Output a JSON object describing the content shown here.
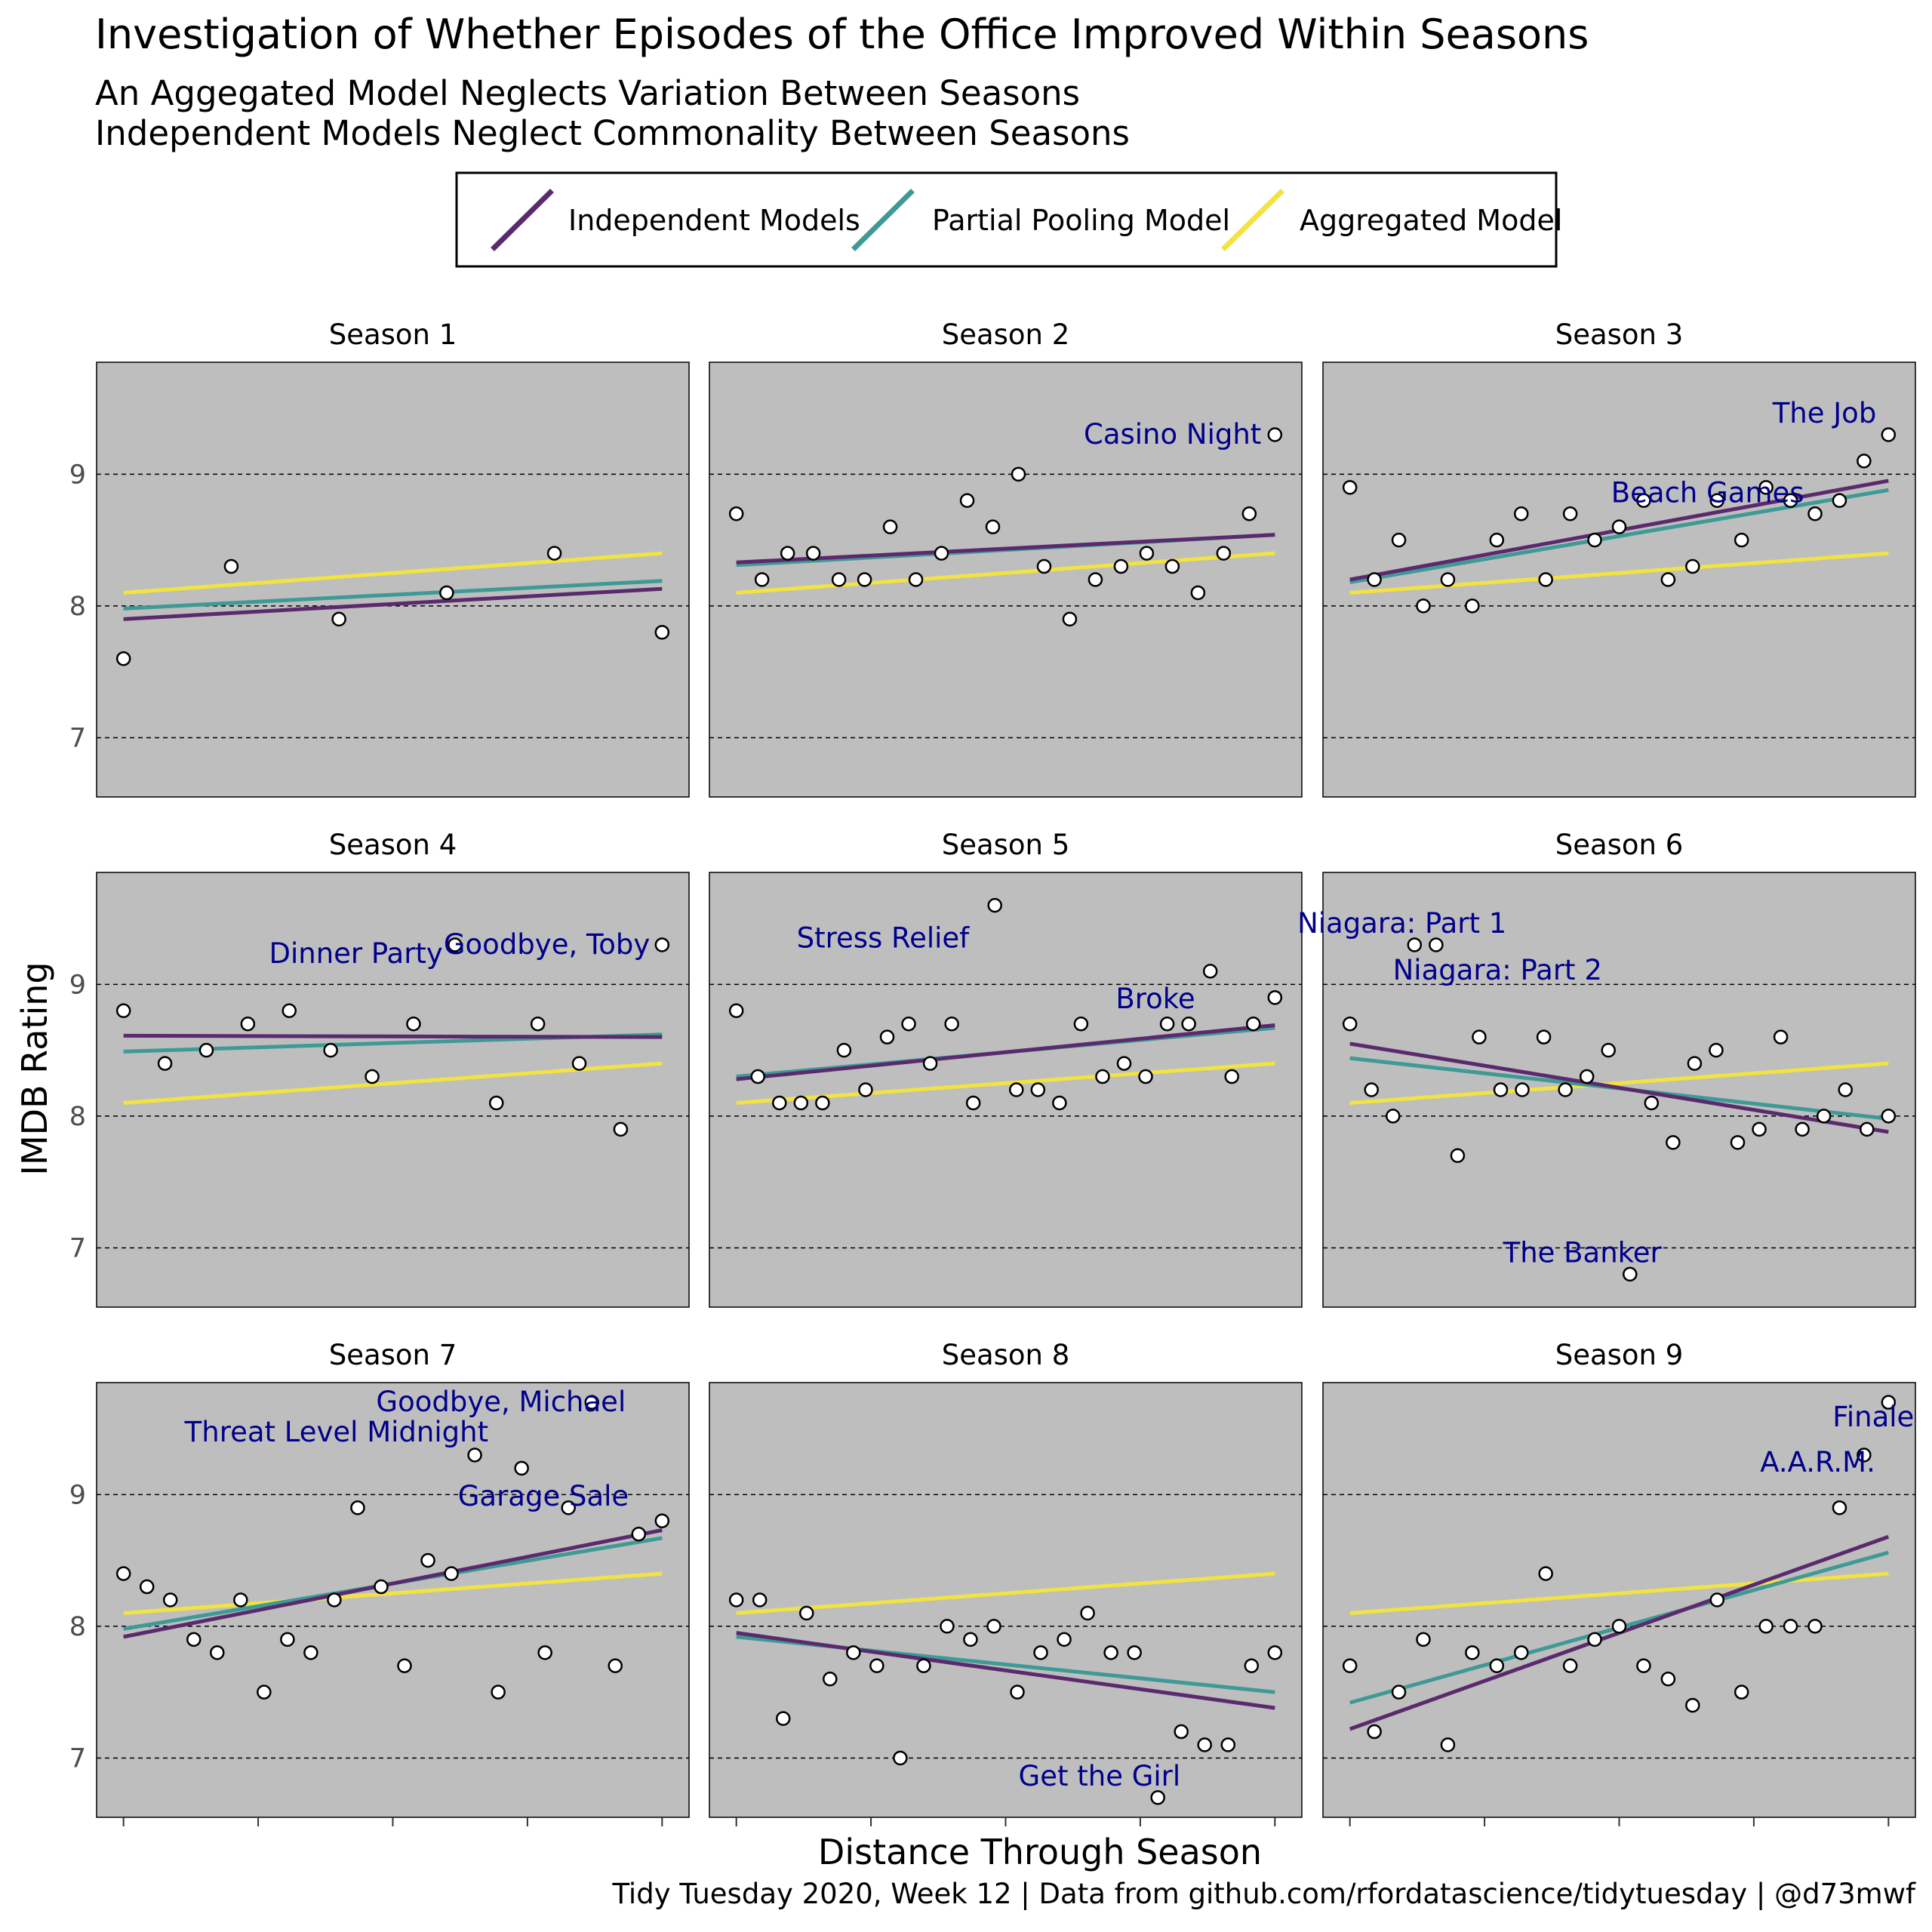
{
  "title": "Investigation of Whether Episodes of the Office Improved Within Seasons",
  "subtitle_lines": [
    "An Aggegated Model Neglects Variation Between Seasons",
    "Independent Models Neglect Commonality Between Seasons"
  ],
  "caption": "Tidy Tuesday 2020, Week 12  |  Data from github.com/rfordatascience/tidytuesday  |  @d73mwf",
  "colors": {
    "independent": "#5b2a6e",
    "partial": "#3e9a96",
    "aggregated": "#f2e340",
    "panel_bg": "#bebebe",
    "annotation": "#00008b",
    "grid": "#000000"
  },
  "chart_data": {
    "type": "scatter",
    "facet_by": "season",
    "xlabel": "Distance Through Season",
    "ylabel": "IMDB Rating",
    "xlim": [
      -0.05,
      1.05
    ],
    "ylim": [
      6.55,
      9.85
    ],
    "yticks": [
      7,
      8,
      9
    ],
    "xticks": [
      0,
      0.25,
      0.5,
      0.75,
      1
    ],
    "grid": "horizontal dashed at y ticks",
    "legend": {
      "placement": "top",
      "entries": [
        "Independent Models",
        "Partial Pooling Model",
        "Aggregated Model"
      ]
    },
    "aggregated_line": [
      8.1,
      8.4
    ],
    "panels": [
      {
        "label": "Season 1",
        "ratings": [
          7.6,
          8.3,
          7.9,
          8.1,
          8.4,
          7.8
        ],
        "independent": [
          7.9,
          8.13
        ],
        "partial": [
          7.98,
          8.19
        ],
        "annotations": []
      },
      {
        "label": "Season 2",
        "ratings": [
          8.7,
          8.2,
          8.4,
          8.4,
          8.2,
          8.2,
          8.6,
          8.2,
          8.4,
          8.8,
          8.6,
          9.0,
          8.3,
          7.9,
          8.2,
          8.3,
          8.4,
          8.3,
          8.1,
          8.4,
          8.7,
          9.3
        ],
        "independent": [
          8.33,
          8.54
        ],
        "partial": [
          8.31,
          8.54
        ],
        "annotations": [
          {
            "text": "Casino Night",
            "index": 21
          }
        ]
      },
      {
        "label": "Season 3",
        "ratings": [
          8.9,
          8.2,
          8.5,
          8.0,
          8.2,
          8.0,
          8.5,
          8.7,
          8.2,
          8.7,
          8.5,
          8.6,
          8.8,
          8.2,
          8.3,
          8.8,
          8.5,
          8.9,
          8.8,
          8.7,
          8.8,
          9.1,
          9.3
        ],
        "independent": [
          8.2,
          8.95
        ],
        "partial": [
          8.18,
          8.88
        ],
        "annotations": [
          {
            "text": "Beach Games",
            "index": 18
          },
          {
            "text": "The Job",
            "index": 22
          }
        ]
      },
      {
        "label": "Season 4",
        "ratings": [
          8.8,
          8.4,
          8.5,
          8.7,
          8.8,
          8.5,
          8.3,
          8.7,
          9.3,
          8.1,
          8.7,
          8.4,
          7.9,
          9.3
        ],
        "independent": [
          8.61,
          8.6
        ],
        "partial": [
          8.49,
          8.62
        ],
        "annotations": [
          {
            "text": "Dinner Party",
            "index": 8
          },
          {
            "text": "Goodbye, Toby",
            "index": 13
          }
        ]
      },
      {
        "label": "Season 5",
        "ratings": [
          8.8,
          8.3,
          8.1,
          8.1,
          8.1,
          8.5,
          8.2,
          8.6,
          8.7,
          8.4,
          8.7,
          8.1,
          9.6,
          8.2,
          8.2,
          8.1,
          8.7,
          8.3,
          8.4,
          8.3,
          8.7,
          8.7,
          9.1,
          8.3,
          8.7,
          8.9
        ],
        "independent": [
          8.28,
          8.69
        ],
        "partial": [
          8.3,
          8.67
        ],
        "annotations": [
          {
            "text": "Stress Relief",
            "index": 12
          },
          {
            "text": "Broke",
            "index": 22
          }
        ]
      },
      {
        "label": "Season 6",
        "ratings": [
          8.7,
          8.2,
          8.0,
          9.3,
          9.3,
          7.7,
          8.6,
          8.2,
          8.2,
          8.6,
          8.2,
          8.3,
          8.5,
          6.8,
          8.1,
          7.8,
          8.4,
          8.5,
          7.8,
          7.9,
          8.6,
          7.9,
          8.0,
          8.2,
          7.9,
          8.0
        ],
        "independent": [
          8.55,
          7.88
        ],
        "partial": [
          8.44,
          7.98
        ],
        "annotations": [
          {
            "text": "Niagara: Part 1",
            "index": 3
          },
          {
            "text": "Niagara: Part 2",
            "index": 4
          },
          {
            "text": "The Banker",
            "index": 13
          }
        ]
      },
      {
        "label": "Season 7",
        "ratings": [
          8.4,
          8.3,
          8.2,
          7.9,
          7.8,
          8.2,
          7.5,
          7.9,
          7.8,
          8.2,
          8.9,
          8.3,
          7.7,
          8.5,
          8.4,
          9.3,
          7.5,
          9.2,
          7.8,
          8.9,
          9.7,
          7.7,
          8.7,
          8.8
        ],
        "independent": [
          7.92,
          8.73
        ],
        "partial": [
          7.98,
          8.67
        ],
        "annotations": [
          {
            "text": "Threat Level Midnight",
            "index": 15
          },
          {
            "text": "Garage Sale",
            "index": 19
          },
          {
            "text": "Goodbye, Michael",
            "index": 20
          }
        ]
      },
      {
        "label": "Season 8",
        "ratings": [
          8.2,
          8.2,
          7.3,
          8.1,
          7.6,
          7.8,
          7.7,
          7.0,
          7.7,
          8.0,
          7.9,
          8.0,
          7.5,
          7.8,
          7.9,
          8.1,
          7.8,
          7.8,
          6.7,
          7.2,
          7.1,
          7.1,
          7.7,
          7.8
        ],
        "independent": [
          7.95,
          7.38
        ],
        "partial": [
          7.92,
          7.5
        ],
        "annotations": [
          {
            "text": "Get the Girl",
            "index": 18
          }
        ]
      },
      {
        "label": "Season 9",
        "ratings": [
          7.7,
          7.2,
          7.5,
          7.9,
          7.1,
          7.8,
          7.7,
          7.8,
          8.4,
          7.7,
          7.9,
          8.0,
          7.7,
          7.6,
          7.4,
          8.2,
          7.5,
          8.0,
          8.0,
          8.0,
          8.9,
          9.3,
          9.7
        ],
        "independent": [
          7.22,
          8.68
        ],
        "partial": [
          7.42,
          8.56
        ],
        "annotations": [
          {
            "text": "A.A.R.M.",
            "index": 21
          },
          {
            "text": "Finale",
            "index": 22
          }
        ]
      }
    ]
  }
}
